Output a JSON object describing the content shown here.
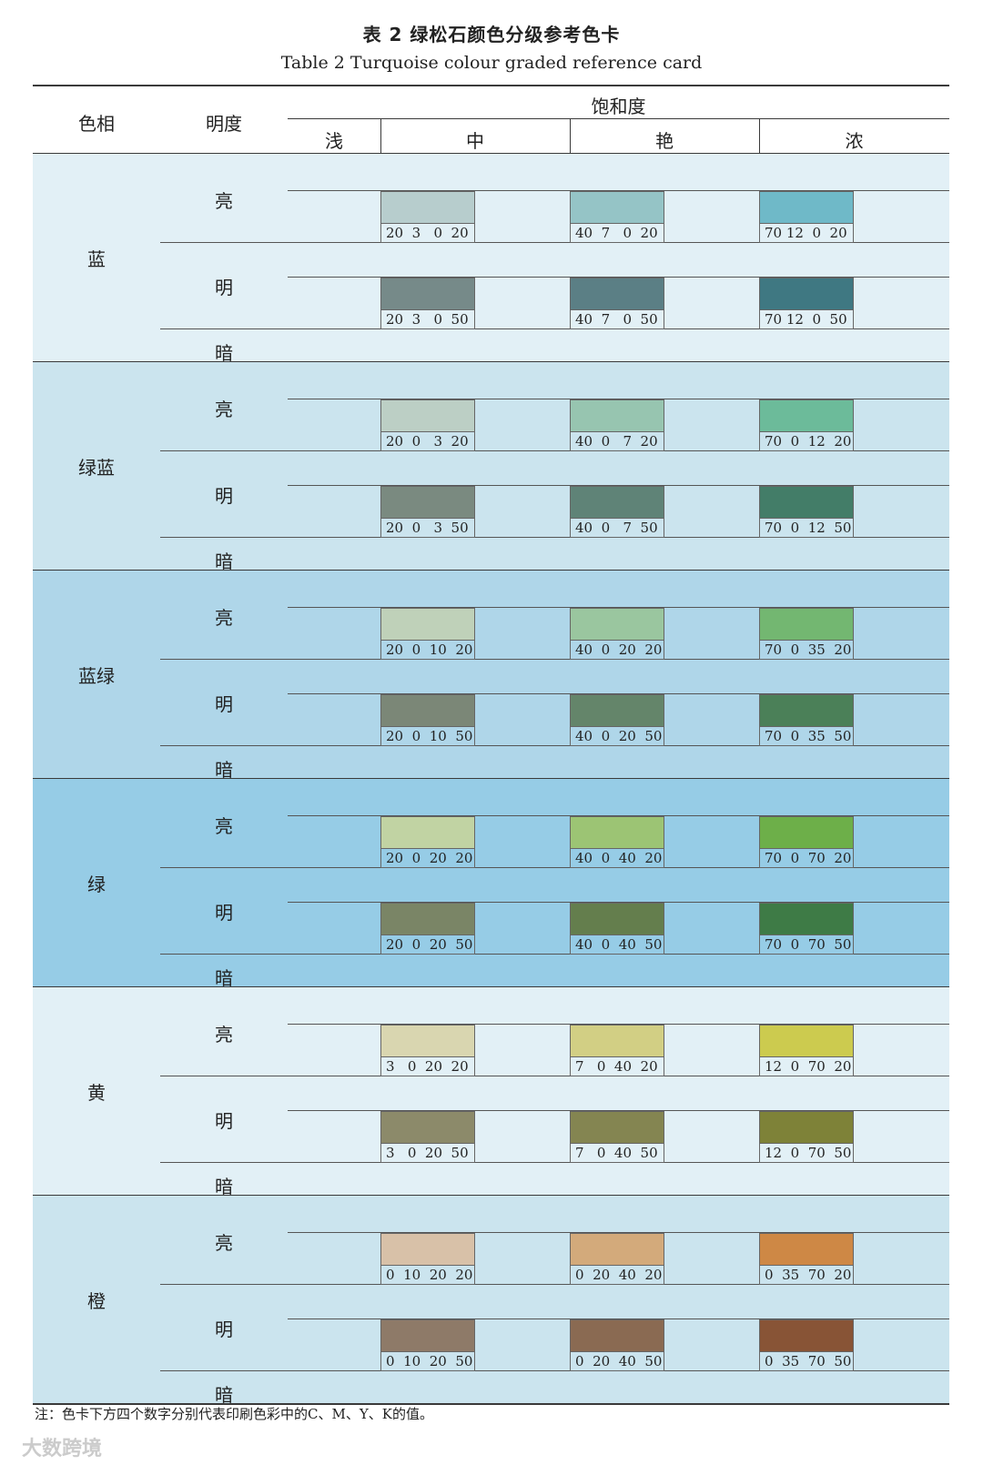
{
  "title_cn": "表 2   绿松石颜色分级参考色卡",
  "title_en": "Table 2   Turquoise colour graded reference card",
  "headers": {
    "hue": "色相",
    "brightness": "明度",
    "saturation": "饱和度",
    "levels": [
      "浅",
      "中",
      "艳",
      "浓"
    ]
  },
  "groups": [
    {
      "hue": "蓝",
      "bg": "#e2f0f6",
      "rows": [
        {
          "label": "亮",
          "swatches": [
            {
              "code": "20  3   0  20",
              "color": "#b7cdcd"
            },
            {
              "code": "40  7   0  20",
              "color": "#95c4c6"
            },
            {
              "code": "70 12  0  20",
              "color": "#6fb9c8"
            }
          ]
        },
        {
          "label": "明",
          "swatches": [
            {
              "code": "20  3   0  50",
              "color": "#768a89"
            },
            {
              "code": "40  7   0  50",
              "color": "#5b7f85"
            },
            {
              "code": "70 12  0  50",
              "color": "#3f7882"
            }
          ]
        }
      ],
      "dark": "暗"
    },
    {
      "hue": "绿蓝",
      "bg": "#cbe4ee",
      "rows": [
        {
          "label": "亮",
          "swatches": [
            {
              "code": "20  0   3  20",
              "color": "#bccfc5"
            },
            {
              "code": "40  0   7  20",
              "color": "#97c5b0"
            },
            {
              "code": "70  0  12  20",
              "color": "#6cbb9a"
            }
          ]
        },
        {
          "label": "明",
          "swatches": [
            {
              "code": "20  0   3  50",
              "color": "#7a8a80"
            },
            {
              "code": "40  0   7  50",
              "color": "#5f8377"
            },
            {
              "code": "70  0  12  50",
              "color": "#437d68"
            }
          ]
        }
      ],
      "dark": "暗"
    },
    {
      "hue": "蓝绿",
      "bg": "#afd6e9",
      "rows": [
        {
          "label": "亮",
          "swatches": [
            {
              "code": "20  0  10  20",
              "color": "#bfd1b9"
            },
            {
              "code": "40  0  20  20",
              "color": "#9ac69f"
            },
            {
              "code": "70  0  35  20",
              "color": "#73b771"
            }
          ]
        },
        {
          "label": "明",
          "swatches": [
            {
              "code": "20  0  10  50",
              "color": "#7b8777"
            },
            {
              "code": "40  0  20  50",
              "color": "#64856a"
            },
            {
              "code": "70  0  35  50",
              "color": "#4b8058"
            }
          ]
        }
      ],
      "dark": "暗"
    },
    {
      "hue": "绿",
      "bg": "#96cce6",
      "rows": [
        {
          "label": "亮",
          "swatches": [
            {
              "code": "20  0  20  20",
              "color": "#c1d3a3"
            },
            {
              "code": "40  0  40  20",
              "color": "#9cc474"
            },
            {
              "code": "70  0  70  20",
              "color": "#6daf49"
            }
          ]
        },
        {
          "label": "明",
          "swatches": [
            {
              "code": "20  0  20  50",
              "color": "#7a8566"
            },
            {
              "code": "40  0  40  50",
              "color": "#647e4d"
            },
            {
              "code": "70  0  70  50",
              "color": "#3e7b46"
            }
          ]
        }
      ],
      "dark": "暗"
    },
    {
      "hue": "黄",
      "bg": "#e2f0f6",
      "rows": [
        {
          "label": "亮",
          "swatches": [
            {
              "code": "3   0  20  20",
              "color": "#d9d6b0"
            },
            {
              "code": "7   0  40  20",
              "color": "#d2cf84"
            },
            {
              "code": "12  0  70  20",
              "color": "#cccb4f"
            }
          ]
        },
        {
          "label": "明",
          "swatches": [
            {
              "code": "3   0  20  50",
              "color": "#8c8a6a"
            },
            {
              "code": "7   0  40  50",
              "color": "#848551"
            },
            {
              "code": "12  0  70  50",
              "color": "#7e8238"
            }
          ]
        }
      ],
      "dark": "暗"
    },
    {
      "hue": "橙",
      "bg": "#cbe4ee",
      "rows": [
        {
          "label": "亮",
          "swatches": [
            {
              "code": "0  10  20  20",
              "color": "#d8c1a8"
            },
            {
              "code": "0  20  40  20",
              "color": "#d3aa7b"
            },
            {
              "code": "0  35  70  20",
              "color": "#ce8845"
            }
          ]
        },
        {
          "label": "明",
          "swatches": [
            {
              "code": "0  10  20  50",
              "color": "#8e7a68"
            },
            {
              "code": "0  20  40  50",
              "color": "#8a6a52"
            },
            {
              "code": "0  35  70  50",
              "color": "#885436"
            }
          ]
        }
      ],
      "dark": "暗"
    }
  ],
  "note": "注：色卡下方四个数字分别代表印刷色彩中的C、M、Y、K的值。",
  "watermark": "大数跨境"
}
